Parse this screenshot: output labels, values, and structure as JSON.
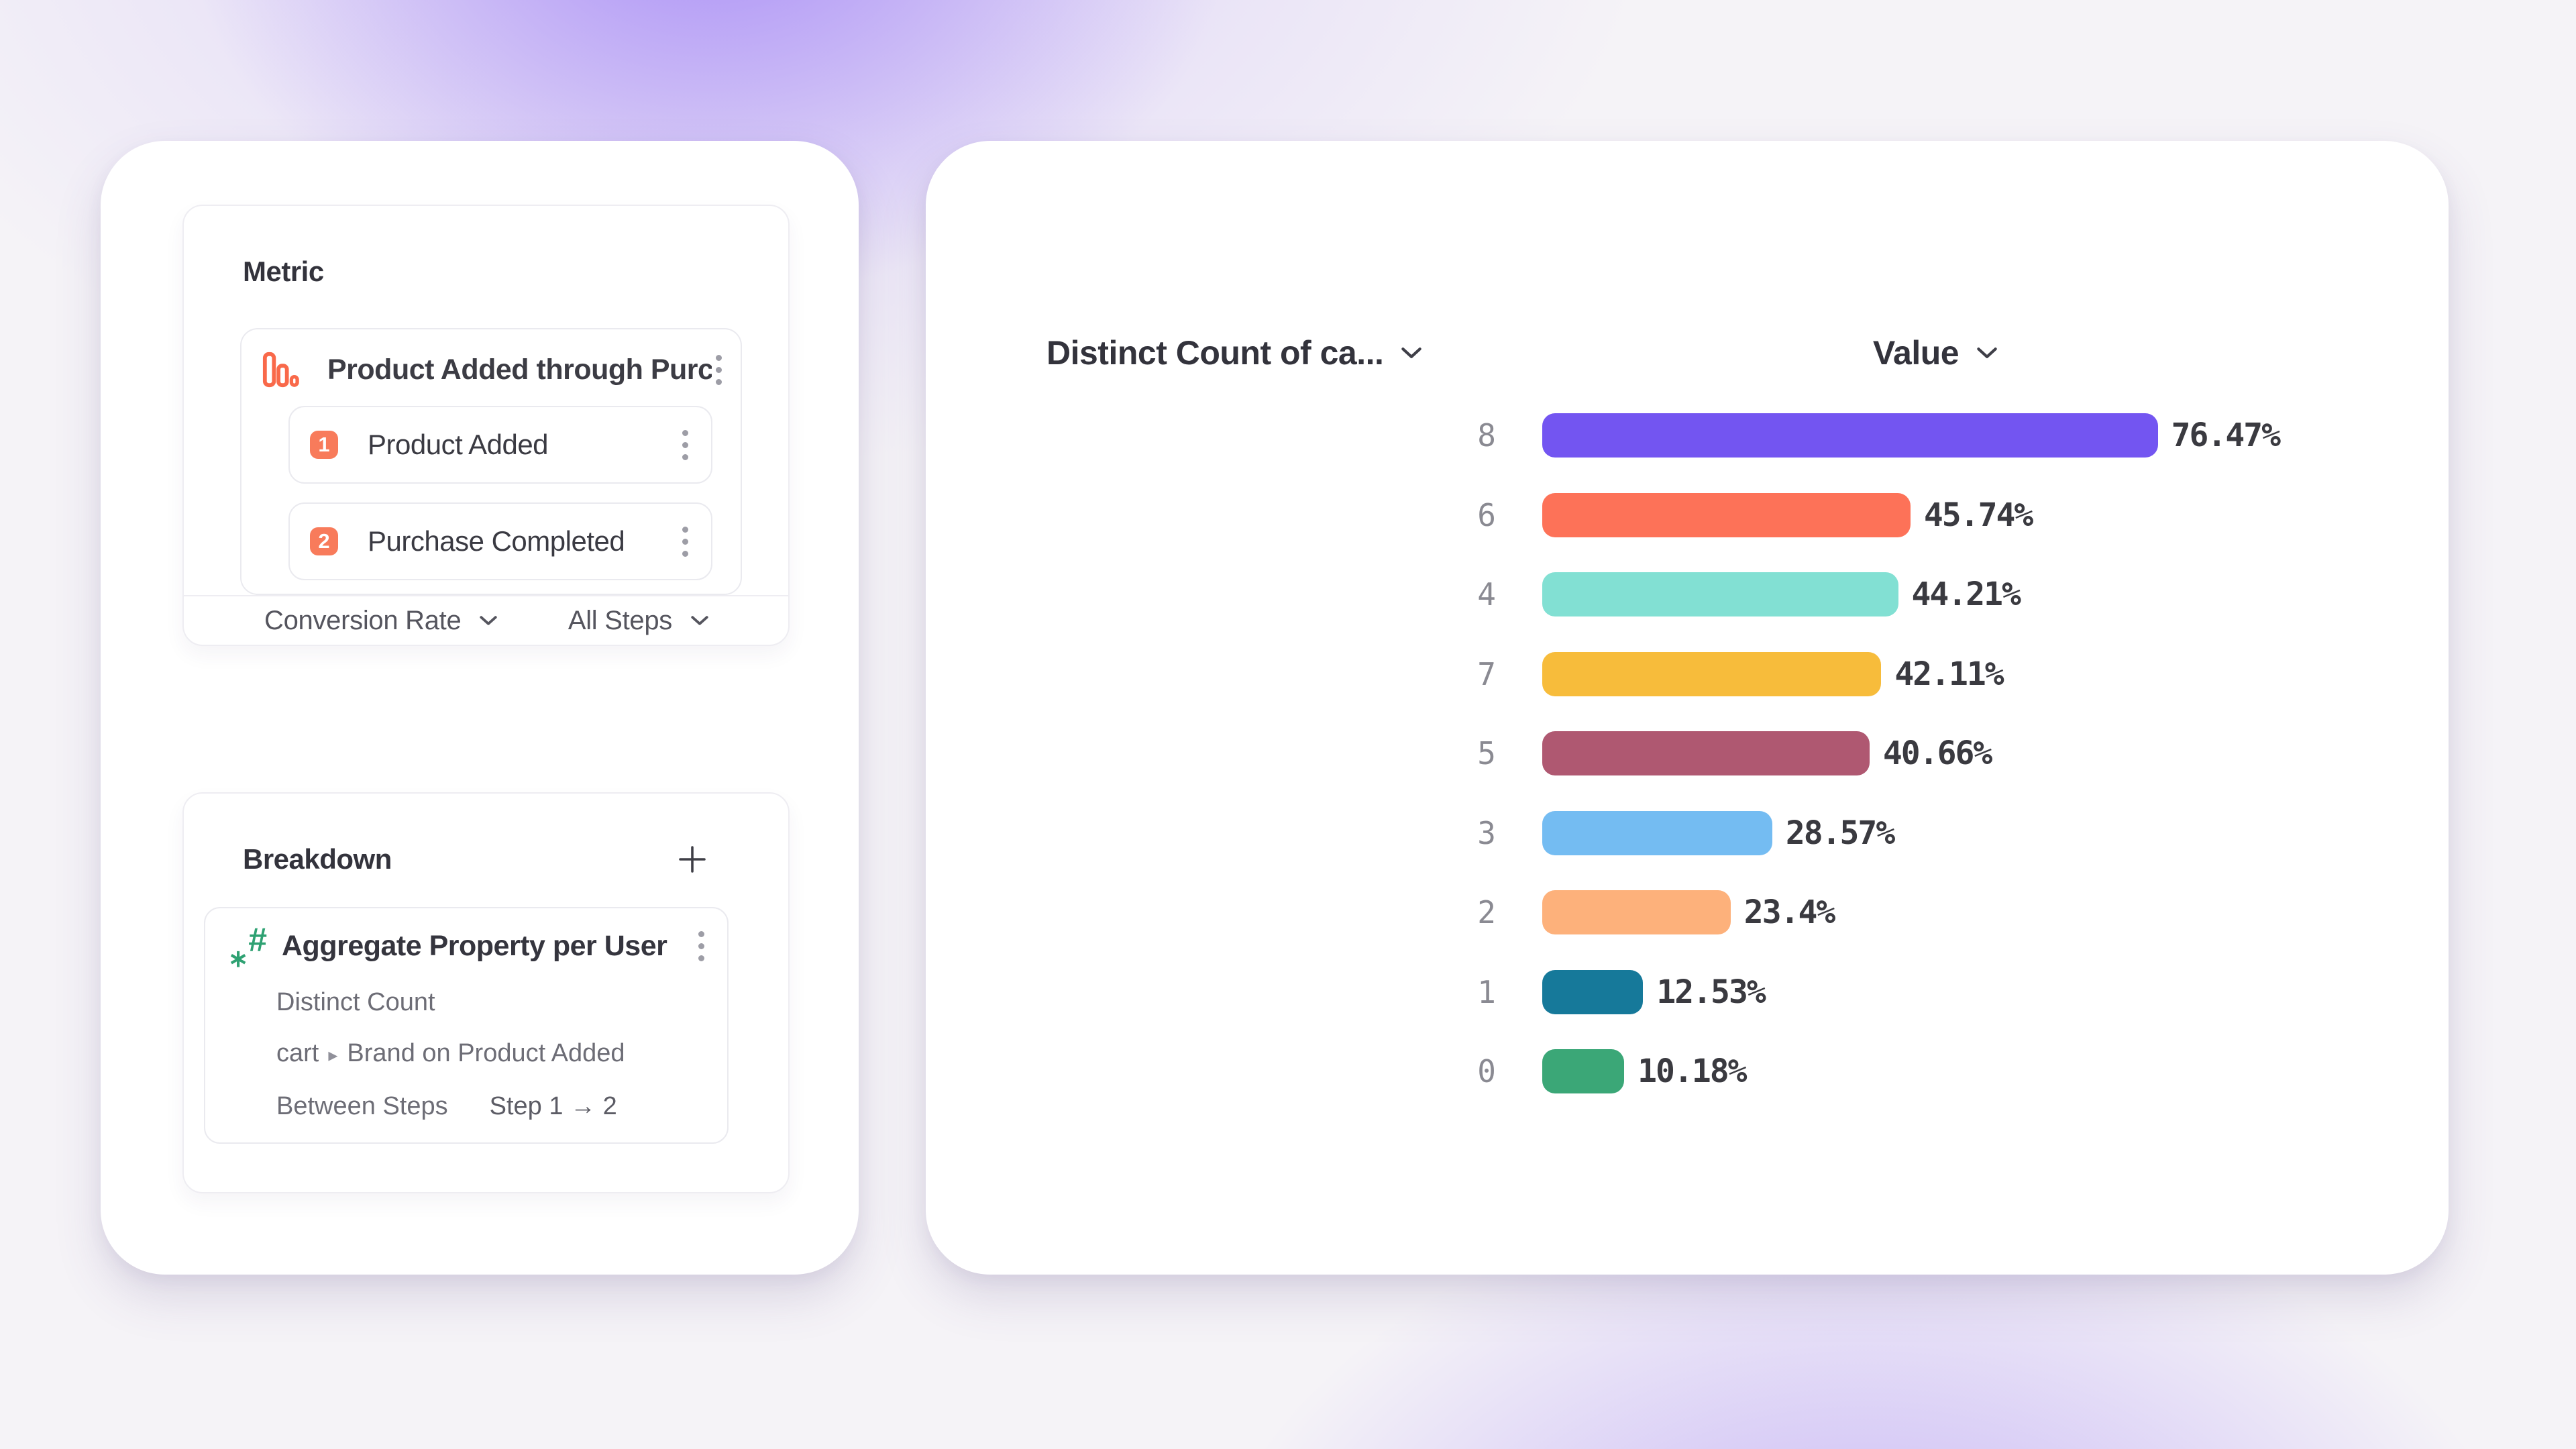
{
  "left_panel": {
    "metric_card": {
      "title": "Metric",
      "item_icon": "funnel-bars-icon",
      "item_label": "Product Added through Purcha...",
      "steps": [
        {
          "number": "1",
          "label": "Product Added"
        },
        {
          "number": "2",
          "label": "Purchase Completed"
        }
      ],
      "footer": {
        "conversion_label": "Conversion Rate",
        "steps_label": "All Steps"
      }
    },
    "breakdown_card": {
      "title": "Breakdown",
      "add_icon": "plus-icon",
      "item": {
        "icon": "numeric-property-icon",
        "label": "Aggregate Property per User",
        "aggregation": "Distinct Count",
        "property_prefix": "cart",
        "property_separator": "▸",
        "property_name": "Brand on Product Added",
        "between_label": "Between Steps",
        "step_range": "Step 1 → 2"
      }
    }
  },
  "chart": {
    "breakdown_header": "Distinct Count of ca...",
    "value_header": "Value"
  },
  "chart_data": {
    "type": "bar",
    "orientation": "horizontal",
    "title": "",
    "xlabel": "Value",
    "ylabel": "Distinct Count of ca...",
    "xlim": [
      0,
      100
    ],
    "grid": false,
    "legend": "none",
    "categories": [
      "8",
      "6",
      "4",
      "7",
      "5",
      "3",
      "2",
      "1",
      "0"
    ],
    "values": [
      76.47,
      45.74,
      44.21,
      42.11,
      40.66,
      28.57,
      23.4,
      12.53,
      10.18
    ],
    "value_labels": [
      "76.47%",
      "45.74%",
      "44.21%",
      "42.11%",
      "40.66%",
      "28.57%",
      "23.4%",
      "12.53%",
      "10.18%"
    ],
    "colors": [
      "#7355f1",
      "#fd7258",
      "#82e0d3",
      "#f7bc3b",
      "#af5871",
      "#74bcf2",
      "#fdb17b",
      "#16799a",
      "#3ba777"
    ]
  },
  "colors": {
    "accent_orange": "#f87b5b",
    "funnel_icon_orange": "#f9694a",
    "property_icon_green": "#2ea172",
    "text_dark": "#33333c",
    "text_gray": "#6d6d76",
    "category_gray": "#8a8a92"
  }
}
